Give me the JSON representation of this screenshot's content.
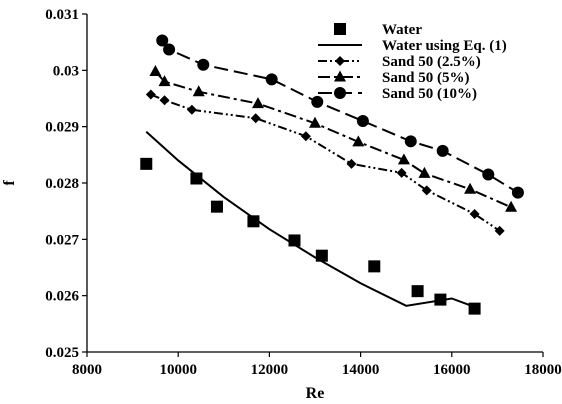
{
  "chart_data": {
    "type": "scatter",
    "xlabel": "Re",
    "ylabel": "f",
    "xlim": [
      8000,
      18000
    ],
    "ylim": [
      0.025,
      0.031
    ],
    "x_ticks": [
      8000,
      10000,
      12000,
      14000,
      16000,
      18000
    ],
    "x_tick_labels": [
      "8000",
      "10000",
      "12000",
      "14000",
      "16000",
      "18000"
    ],
    "y_ticks": [
      0.025,
      0.026,
      0.027,
      0.028,
      0.029,
      0.03,
      0.031
    ],
    "y_tick_labels": [
      "0.025",
      "0.026",
      "0.027",
      "0.028",
      "0.029",
      "0.03",
      "0.031"
    ],
    "grid": false,
    "legend_position": "top-right",
    "series": [
      {
        "name": "Water",
        "marker": "square",
        "line": "none",
        "color": "#000000",
        "x": [
          9300,
          10400,
          10850,
          11650,
          12550,
          13150,
          14300,
          15250,
          15750,
          16500
        ],
        "y": [
          0.02834,
          0.02808,
          0.02758,
          0.02732,
          0.02698,
          0.02671,
          0.02652,
          0.02608,
          0.02593,
          0.02577
        ]
      },
      {
        "name": "Water using Eq. (1)",
        "marker": "none",
        "line": "solid",
        "color": "#000000",
        "x": [
          9300,
          10000,
          11000,
          12000,
          13000,
          14000,
          15000,
          16000,
          16500
        ],
        "y": [
          0.02891,
          0.0284,
          0.02775,
          0.02718,
          0.02668,
          0.02622,
          0.02582,
          0.02595,
          0.0258
        ]
      },
      {
        "name": "Sand 50 (2.5%)",
        "marker": "diamond",
        "line": "dash-dot-dot",
        "color": "#000000",
        "x": [
          9400,
          9700,
          10300,
          11700,
          12800,
          13800,
          14900,
          15450,
          16500,
          17050
        ],
        "y": [
          0.02957,
          0.02947,
          0.0293,
          0.02915,
          0.02883,
          0.02834,
          0.02818,
          0.02787,
          0.02745,
          0.02715
        ]
      },
      {
        "name": "Sand 50 (5%)",
        "marker": "triangle",
        "line": "dash-dot",
        "color": "#000000",
        "x": [
          9500,
          9700,
          10450,
          11750,
          13000,
          13950,
          14950,
          15400,
          16400,
          17300
        ],
        "y": [
          0.02998,
          0.0298,
          0.02962,
          0.02941,
          0.02906,
          0.02873,
          0.02841,
          0.02817,
          0.02789,
          0.02757
        ]
      },
      {
        "name": "Sand 50 (10%)",
        "marker": "circle",
        "line": "dashed",
        "color": "#000000",
        "x": [
          9650,
          9800,
          10550,
          12050,
          13050,
          14050,
          15100,
          15800,
          16800,
          17450
        ],
        "y": [
          0.03053,
          0.03037,
          0.0301,
          0.02984,
          0.02944,
          0.0291,
          0.02874,
          0.02857,
          0.02815,
          0.02783
        ]
      }
    ]
  }
}
